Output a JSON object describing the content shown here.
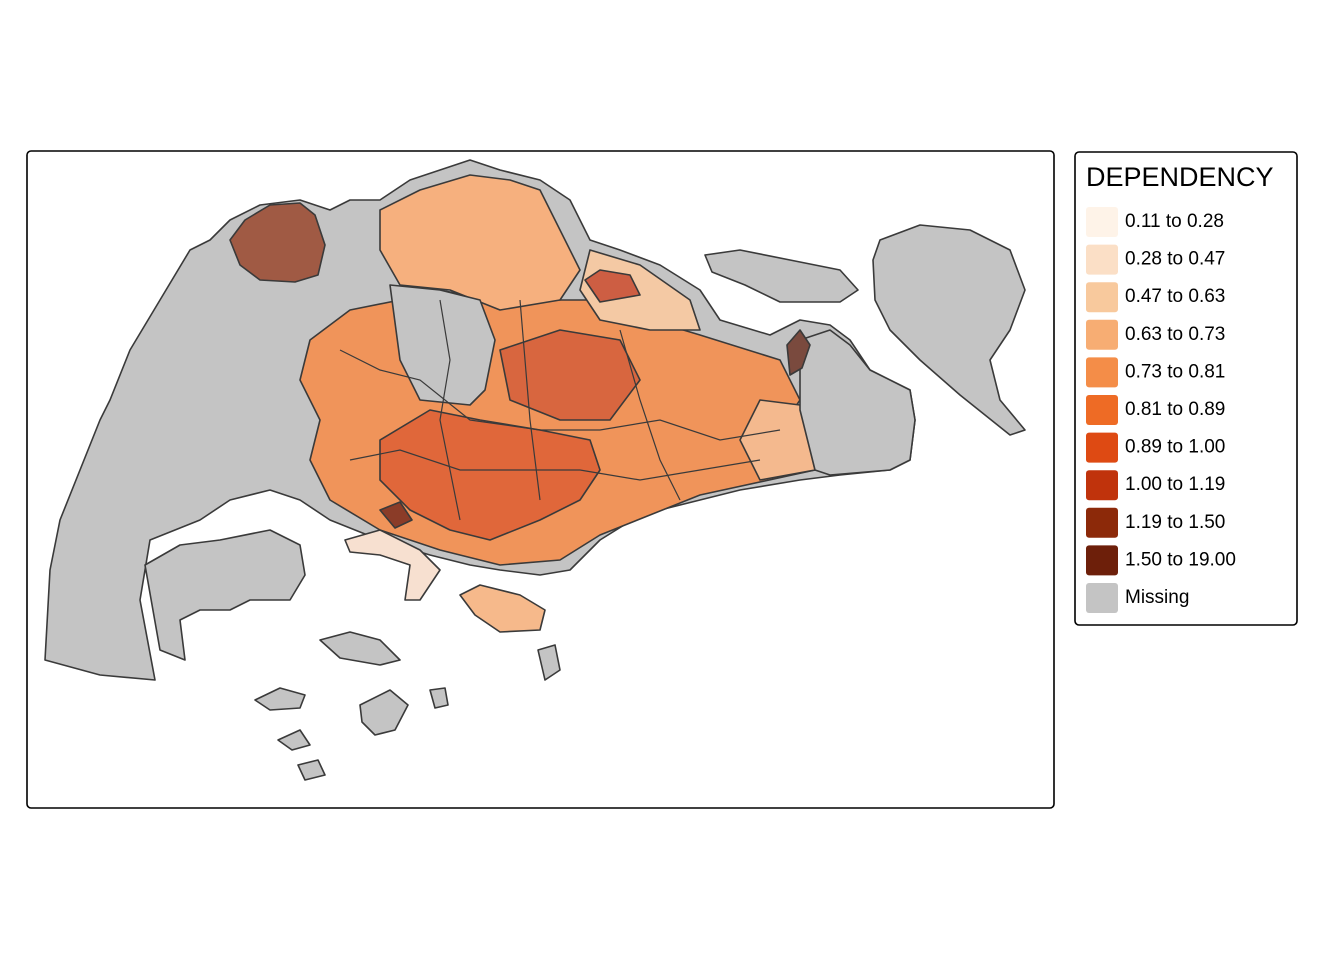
{
  "legend": {
    "title": "DEPENDENCY",
    "items": [
      {
        "label": "0.11 to 0.28",
        "color": "#fef3e8"
      },
      {
        "label": "0.28 to 0.47",
        "color": "#fbdfc6"
      },
      {
        "label": "0.47 to 0.63",
        "color": "#f8c99d"
      },
      {
        "label": "0.63 to 0.73",
        "color": "#f7ad73"
      },
      {
        "label": "0.73 to 0.81",
        "color": "#f48d48"
      },
      {
        "label": "0.81 to 0.89",
        "color": "#ee6b25"
      },
      {
        "label": "0.89 to 1.00",
        "color": "#de4a13"
      },
      {
        "label": "1.00 to 1.19",
        "color": "#c0330c"
      },
      {
        "label": "1.19 to 1.50",
        "color": "#8c2909"
      },
      {
        "label": "1.50 to 19.00",
        "color": "#6d1f0a"
      },
      {
        "label": "Missing",
        "color": "#c4c4c4"
      }
    ]
  }
}
